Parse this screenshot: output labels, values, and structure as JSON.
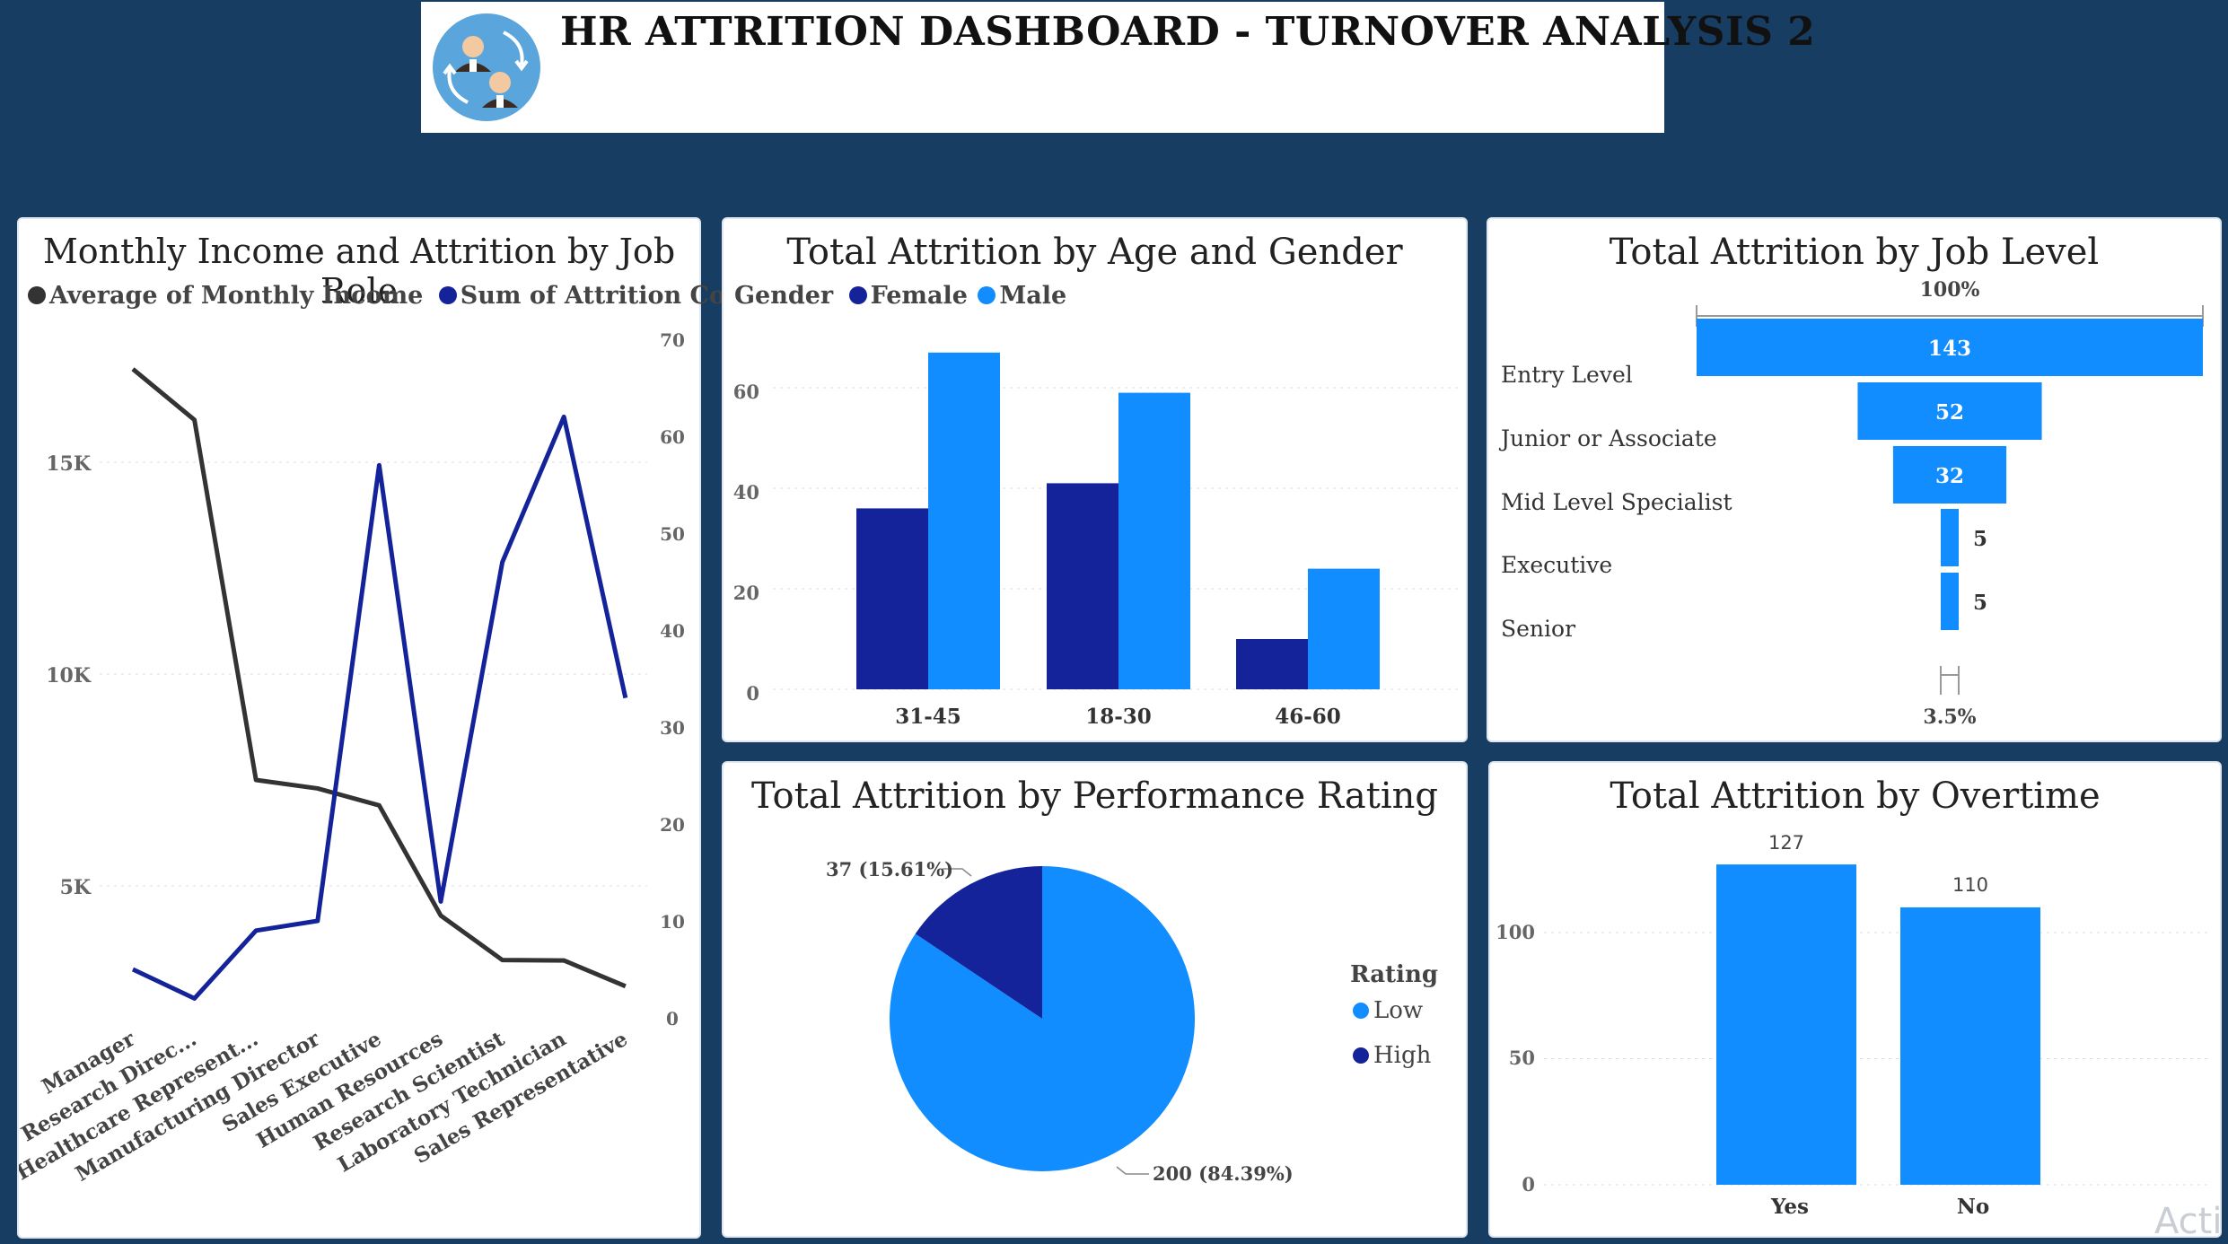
{
  "header": {
    "title": "HR ATTRITION DASHBOARD - TURNOVER ANALYSIS 2",
    "logo_icon": "people-exchange-icon"
  },
  "colors": {
    "dark_line": "#333333",
    "navy": "#14239a",
    "blue": "#118dff",
    "bg": "#173d63"
  },
  "charts": {
    "income_role": {
      "title": "Monthly Income and Attrition by Job Role",
      "legend": {
        "s1": "Average of Monthly Income",
        "s2": "Sum of Attrition Co..."
      },
      "y_left_ticks": [
        "15K",
        "10K",
        "5K"
      ],
      "y_right_ticks": [
        "70",
        "60",
        "50",
        "40",
        "30",
        "20",
        "10",
        "0"
      ],
      "categories": [
        "Manager",
        "Research Direc...",
        "Healthcare Represent...",
        "Manufacturing Director",
        "Sales Executive",
        "Human Resources",
        "Research Scientist",
        "Laboratory Technician",
        "Sales Representative"
      ]
    },
    "age_gender": {
      "title": "Total Attrition by Age and Gender",
      "legend": {
        "label": "Gender",
        "s1": "Female",
        "s2": "Male"
      },
      "y_ticks": [
        "60",
        "40",
        "20",
        "0"
      ],
      "categories": [
        "31-45",
        "18-30",
        "46-60"
      ]
    },
    "job_level": {
      "title": "Total Attrition by Job Level",
      "top_label": "100%",
      "bottom_label": "3.5%",
      "levels": [
        {
          "label": "Entry Level",
          "value": "143"
        },
        {
          "label": "Junior or Associate",
          "value": "52"
        },
        {
          "label": "Mid Level Specialist",
          "value": "32"
        },
        {
          "label": "Executive",
          "value": "5"
        },
        {
          "label": "Senior",
          "value": "5"
        }
      ]
    },
    "performance": {
      "title": "Total Attrition by Performance Rating",
      "legend_title": "Rating",
      "legend": [
        "Low",
        "High"
      ],
      "labels": {
        "high": "37 (15.61%)",
        "low": "200 (84.39%)"
      }
    },
    "overtime": {
      "title": "Total Attrition by Overtime",
      "y_ticks": [
        "100",
        "50",
        "0"
      ],
      "categories": [
        "Yes",
        "No"
      ],
      "value_labels": [
        "127",
        "110"
      ]
    }
  },
  "chart_data": [
    {
      "type": "line",
      "title": "Monthly Income and Attrition by Job Role",
      "categories": [
        "Manager",
        "Research Direc...",
        "Healthcare Represent...",
        "Manufacturing Director",
        "Sales Executive",
        "Human Resources",
        "Research Scientist",
        "Laboratory Technician",
        "Sales Representative"
      ],
      "series": [
        {
          "name": "Average of Monthly Income",
          "axis": "left",
          "values": [
            17200,
            16000,
            7500,
            7300,
            6900,
            4300,
            3250,
            3240,
            2630
          ]
        },
        {
          "name": "Sum of Attrition Co...",
          "axis": "right",
          "values": [
            5,
            2,
            9,
            10,
            57,
            12,
            47,
            62,
            33
          ]
        }
      ],
      "ylim_left": [
        0,
        20000
      ],
      "ylim_right": [
        0,
        70
      ]
    },
    {
      "type": "bar",
      "title": "Total Attrition by Age and Gender",
      "categories": [
        "31-45",
        "18-30",
        "46-60"
      ],
      "series": [
        {
          "name": "Female",
          "values": [
            36,
            41,
            10
          ]
        },
        {
          "name": "Male",
          "values": [
            67,
            59,
            24
          ]
        }
      ],
      "ylim": [
        0,
        70
      ]
    },
    {
      "type": "bar",
      "title": "Total Attrition by Job Level",
      "categories": [
        "Entry Level",
        "Junior or Associate",
        "Mid Level Specialist",
        "Executive",
        "Senior"
      ],
      "values": [
        143,
        52,
        32,
        5,
        5
      ]
    },
    {
      "type": "pie",
      "title": "Total Attrition by Performance Rating",
      "categories": [
        "Low",
        "High"
      ],
      "values": [
        200,
        37
      ]
    },
    {
      "type": "bar",
      "title": "Total Attrition by Overtime",
      "categories": [
        "Yes",
        "No"
      ],
      "values": [
        127,
        110
      ],
      "ylim": [
        0,
        135
      ]
    }
  ]
}
